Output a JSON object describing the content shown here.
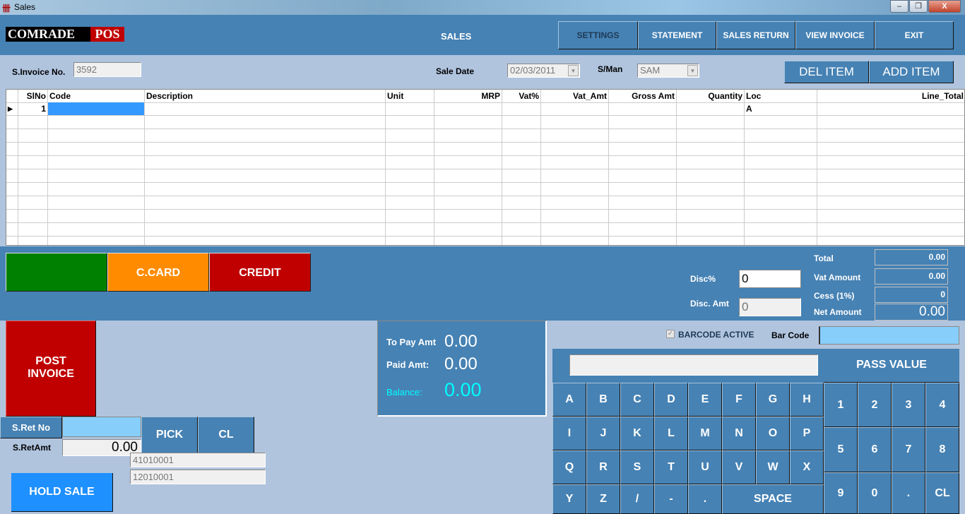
{
  "window": {
    "title": "Sales",
    "controls": [
      "–",
      "❐",
      "X"
    ]
  },
  "header": {
    "logo_left": "COMRADE",
    "logo_right": "POS",
    "title": "SALES",
    "buttons": [
      "SETTINGS",
      "STATEMENT",
      "SALES RETURN",
      "VIEW INVOICE",
      "EXIT"
    ]
  },
  "form": {
    "invoice_label": "S.Invoice No.",
    "invoice_value": "3592",
    "date_label": "Sale Date",
    "date_value": "02/03/2011",
    "sman_label": "S/Man",
    "sman_value": "SAM",
    "del_item": "DEL ITEM",
    "add_item": "ADD ITEM"
  },
  "grid": {
    "columns": [
      "SlNo",
      "Code",
      "Description",
      "Unit",
      "MRP",
      "Vat%",
      "Vat_Amt",
      "Gross Amt",
      "Quantity",
      "Loc",
      "Line_Total"
    ],
    "rows": [
      [
        "1",
        "",
        "",
        "",
        "",
        "",
        "",
        "",
        "",
        "A",
        ""
      ]
    ]
  },
  "payment": {
    "cash": "",
    "ccard": "C.CARD",
    "credit": "CREDIT",
    "colors": {
      "cash": "#008000",
      "ccard": "#ff8c00",
      "credit": "#c00000"
    }
  },
  "discount": {
    "pct_label": "Disc%",
    "pct_value": "0",
    "amt_label": "Disc. Amt",
    "amt_value": "0"
  },
  "totals": {
    "total_label": "Total",
    "total": "0.00",
    "vat_label": "Vat Amount",
    "vat": "0.00",
    "cess_label": "Cess (1%)",
    "cess": "0",
    "net_label": "Net Amount",
    "net": "0.00"
  },
  "actions": {
    "post_invoice_line1": "POST",
    "post_invoice_line2": "INVOICE",
    "sret_no": "S.Ret No",
    "sret_amt_label": "S.RetAmt",
    "sret_amt": "0.00",
    "pick": "PICK",
    "cl": "CL",
    "code1": "41010001",
    "code2": "12010001",
    "hold_sale": "HOLD SALE"
  },
  "summary": {
    "topay_label": "To Pay Amt",
    "topay": "0.00",
    "paid_label": "Paid Amt:",
    "paid": "0.00",
    "balance_label": "Balance:",
    "balance": "0.00"
  },
  "barcode": {
    "active_label": "BARCODE ACTIVE",
    "checked": true,
    "label": "Bar Code",
    "value": ""
  },
  "keyboard": {
    "pass_value": "PASS VALUE",
    "letters": [
      [
        "A",
        "B",
        "C",
        "D",
        "E",
        "F",
        "G",
        "H"
      ],
      [
        "I",
        "J",
        "K",
        "L",
        "M",
        "N",
        "O",
        "P"
      ],
      [
        "Q",
        "R",
        "S",
        "T",
        "U",
        "V",
        "W",
        "X"
      ],
      [
        "Y",
        "Z",
        "/",
        "-",
        "."
      ]
    ],
    "space": "SPACE",
    "numbers": [
      [
        "1",
        "2",
        "3",
        "4"
      ],
      [
        "5",
        "6",
        "7",
        "8"
      ],
      [
        "9",
        "0",
        ".",
        "CL"
      ]
    ]
  }
}
